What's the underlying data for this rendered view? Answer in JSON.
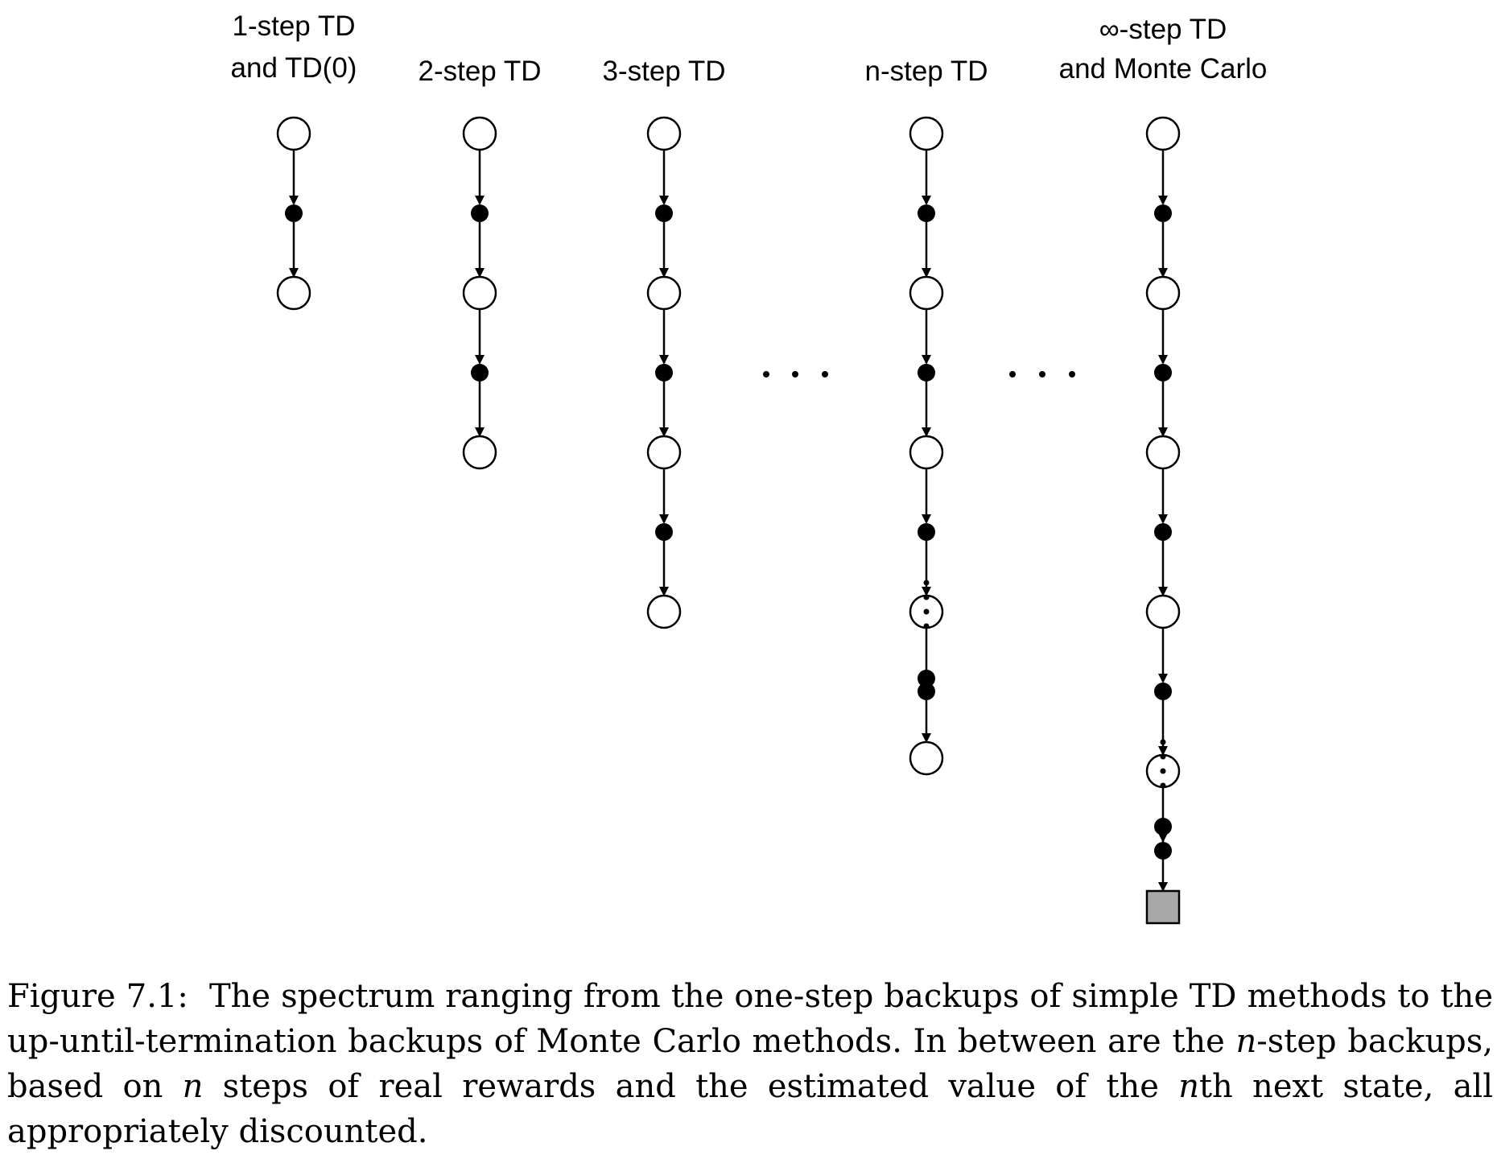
{
  "columns": [
    {
      "name": "one-step",
      "label_lines": [
        "1-step TD",
        "and TD(0)"
      ],
      "steps": 1,
      "has_ellipsis": false,
      "terminal": false
    },
    {
      "name": "two-step",
      "label_lines": [
        "2-step TD"
      ],
      "steps": 2,
      "has_ellipsis": false,
      "terminal": false
    },
    {
      "name": "three-step",
      "label_lines": [
        "3-step TD"
      ],
      "steps": 3,
      "has_ellipsis": false,
      "terminal": false
    },
    {
      "name": "n-step",
      "label_lines": [
        "n-step TD"
      ],
      "steps": 3,
      "has_ellipsis": true,
      "terminal": false
    },
    {
      "name": "infinity-step",
      "label_lines": [
        "∞-step TD",
        "and Monte Carlo"
      ],
      "steps": 4,
      "has_ellipsis": true,
      "terminal": true
    }
  ],
  "between_ellipses": [
    {
      "name": "ellipsis-between-3-and-n"
    },
    {
      "name": "ellipsis-between-n-and-infinity"
    }
  ],
  "caption": {
    "figure_label": "Figure 7.1:",
    "segments": [
      {
        "text": "The spectrum ranging from the one-step backups of simple TD methods to the up-until-termination backups of Monte Carlo methods. In between are the ",
        "italic": false
      },
      {
        "text": "n",
        "italic": true
      },
      {
        "text": "-step backups, based on ",
        "italic": false
      },
      {
        "text": "n",
        "italic": true
      },
      {
        "text": " steps of real rewards and the estimated value of the ",
        "italic": false
      },
      {
        "text": "n",
        "italic": true
      },
      {
        "text": "th next state, all appropriately discounted.",
        "italic": false
      }
    ]
  },
  "colors": {
    "stroke": "#000000",
    "state_fill": "#ffffff",
    "action_fill": "#000000",
    "terminal_fill": "#a8a8a8"
  }
}
